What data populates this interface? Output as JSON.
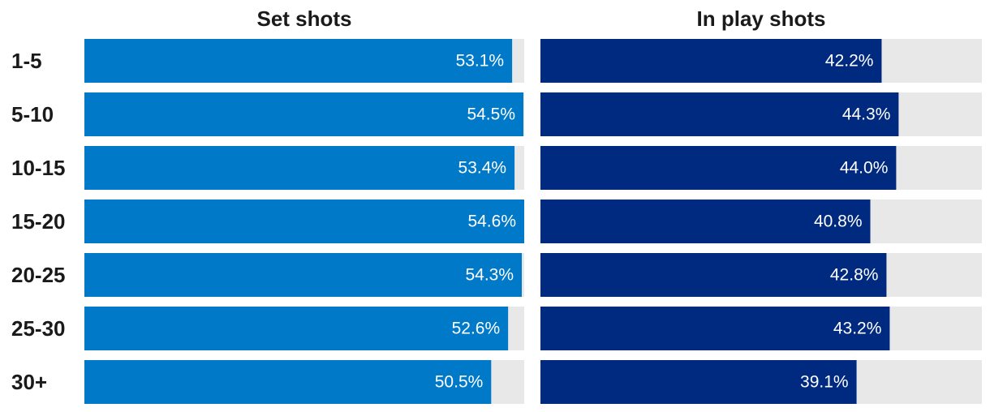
{
  "chart_data": {
    "type": "bar",
    "orientation": "horizontal",
    "categories": [
      "1-5",
      "5-10",
      "10-15",
      "15-20",
      "20-25",
      "25-30",
      "30+"
    ],
    "xlim": [
      0,
      54.6
    ],
    "grid": false,
    "legend": "none",
    "series": [
      {
        "title": "Set shots",
        "color": "#0079c9",
        "values": [
          53.1,
          54.5,
          53.4,
          54.6,
          54.3,
          52.6,
          50.5
        ],
        "labels": [
          "53.1%",
          "54.5%",
          "53.4%",
          "54.6%",
          "54.3%",
          "52.6%",
          "50.5%"
        ]
      },
      {
        "title": "In play shots",
        "color": "#002a7f",
        "values": [
          42.2,
          44.3,
          44.0,
          40.8,
          42.8,
          43.2,
          39.1
        ],
        "labels": [
          "42.2%",
          "44.3%",
          "44.0%",
          "40.8%",
          "42.8%",
          "43.2%",
          "39.1%"
        ]
      }
    ],
    "track_color": "#e8e8e8"
  }
}
